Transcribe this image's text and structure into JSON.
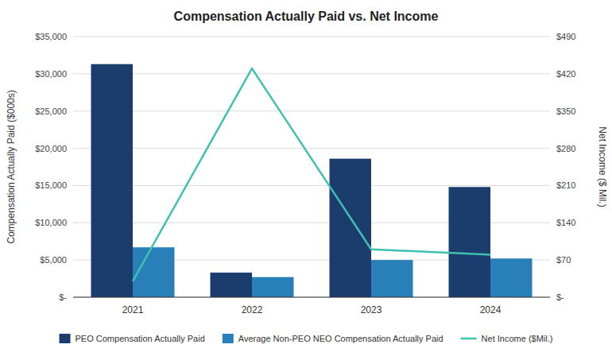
{
  "chart_data": {
    "type": "bar",
    "title": "Compensation Actually Paid vs. Net Income",
    "categories": [
      2021,
      2022,
      2023,
      2024
    ],
    "series": [
      {
        "name": "PEO Compensation Actually Paid",
        "type": "bar",
        "color": "#1b3d6e",
        "values": [
          31300,
          3300,
          18600,
          14800
        ]
      },
      {
        "name": "Average Non-PEO NEO Compensation Actually Paid",
        "type": "bar",
        "color": "#2980b9",
        "values": [
          6700,
          2700,
          5000,
          5200
        ]
      },
      {
        "name": "Net Income ($Mil.)",
        "type": "line",
        "axis": "y2",
        "color": "#40c0b0",
        "values": [
          30,
          430,
          90,
          80
        ]
      }
    ],
    "ylabel": "Compensation Actually Paid ($000s)",
    "y2label": "Net Income ($ Mil.)",
    "ylim": [
      0,
      35000
    ],
    "yticks": [
      {
        "value": 0,
        "label": "$-"
      },
      {
        "value": 5000,
        "label": "$5,000"
      },
      {
        "value": 10000,
        "label": "$10,000"
      },
      {
        "value": 15000,
        "label": "$15,000"
      },
      {
        "value": 20000,
        "label": "$20,000"
      },
      {
        "value": 25000,
        "label": "$25,000"
      },
      {
        "value": 30000,
        "label": "$30,000"
      },
      {
        "value": 35000,
        "label": "$35,000"
      }
    ],
    "y2lim": [
      0,
      490
    ],
    "y2ticks": [
      {
        "value": 0,
        "label": "$-"
      },
      {
        "value": 70,
        "label": "$70"
      },
      {
        "value": 140,
        "label": "$140"
      },
      {
        "value": 210,
        "label": "$210"
      },
      {
        "value": 280,
        "label": "$280"
      },
      {
        "value": 350,
        "label": "$350"
      },
      {
        "value": 420,
        "label": "$420"
      },
      {
        "value": 490,
        "label": "$490"
      }
    ],
    "grid": true,
    "legend": "bottom"
  }
}
